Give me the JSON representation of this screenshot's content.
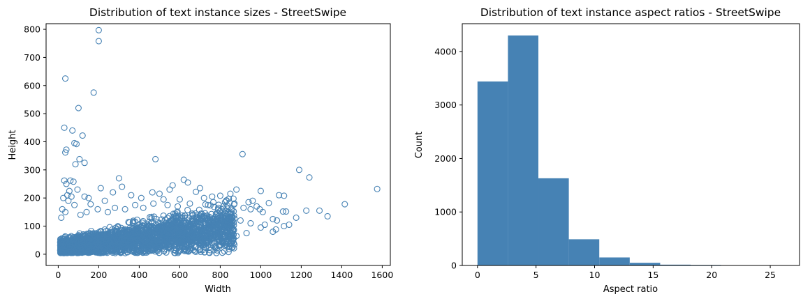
{
  "chart_data": [
    {
      "type": "scatter",
      "title": "Distribution of text instance sizes - StreetSwipe",
      "xlabel": "Width",
      "ylabel": "Height",
      "xlim": [
        -60,
        1640
      ],
      "ylim": [
        -40,
        820
      ],
      "xticks": [
        0,
        200,
        400,
        600,
        800,
        1000,
        1200,
        1400,
        1600
      ],
      "yticks": [
        0,
        100,
        200,
        300,
        400,
        500,
        600,
        700,
        800
      ],
      "marker": "hollow-circle",
      "color": "#4682b4",
      "grid": false,
      "points": [
        [
          35,
          625
        ],
        [
          175,
          575
        ],
        [
          200,
          797
        ],
        [
          200,
          758
        ],
        [
          100,
          520
        ],
        [
          30,
          450
        ],
        [
          70,
          440
        ],
        [
          120,
          422
        ],
        [
          40,
          372
        ],
        [
          35,
          362
        ],
        [
          80,
          395
        ],
        [
          90,
          392
        ],
        [
          105,
          338
        ],
        [
          130,
          325
        ],
        [
          85,
          320
        ],
        [
          480,
          338
        ],
        [
          910,
          356
        ],
        [
          1190,
          300
        ],
        [
          1240,
          273
        ],
        [
          1575,
          232
        ],
        [
          1415,
          178
        ],
        [
          1330,
          135
        ],
        [
          1290,
          155
        ],
        [
          1225,
          155
        ],
        [
          1175,
          130
        ],
        [
          1125,
          152
        ],
        [
          1110,
          152
        ],
        [
          1140,
          105
        ],
        [
          1115,
          100
        ],
        [
          1080,
          120
        ],
        [
          1060,
          125
        ],
        [
          1075,
          88
        ],
        [
          1020,
          105
        ],
        [
          995,
          160
        ],
        [
          1000,
          225
        ],
        [
          1040,
          182
        ],
        [
          1090,
          210
        ],
        [
          1115,
          208
        ],
        [
          960,
          190
        ],
        [
          980,
          170
        ],
        [
          880,
          230
        ],
        [
          915,
          165
        ],
        [
          850,
          215
        ],
        [
          800,
          208
        ],
        [
          620,
          265
        ],
        [
          640,
          255
        ],
        [
          700,
          235
        ],
        [
          680,
          222
        ],
        [
          565,
          245
        ],
        [
          550,
          230
        ],
        [
          465,
          220
        ],
        [
          300,
          270
        ],
        [
          315,
          240
        ],
        [
          210,
          235
        ],
        [
          30,
          262
        ],
        [
          60,
          262
        ],
        [
          75,
          258
        ],
        [
          40,
          250
        ],
        [
          55,
          225
        ],
        [
          95,
          230
        ],
        [
          20,
          160
        ],
        [
          15,
          130
        ],
        [
          25,
          200
        ],
        [
          45,
          210
        ],
        [
          50,
          190
        ],
        [
          65,
          205
        ],
        [
          130,
          205
        ],
        [
          150,
          200
        ],
        [
          160,
          178
        ],
        [
          230,
          190
        ],
        [
          270,
          220
        ],
        [
          360,
          210
        ],
        [
          410,
          200
        ],
        [
          500,
          215
        ],
        [
          520,
          195
        ],
        [
          600,
          195
        ],
        [
          720,
          200
        ],
        [
          760,
          205
        ],
        [
          830,
          190
        ],
        [
          870,
          180
        ],
        [
          940,
          185
        ],
        [
          950,
          160
        ],
        [
          1010,
          150
        ],
        [
          840,
          150
        ],
        [
          790,
          165
        ],
        [
          740,
          175
        ],
        [
          650,
          180
        ],
        [
          590,
          170
        ],
        [
          540,
          175
        ],
        [
          470,
          180
        ],
        [
          420,
          165
        ],
        [
          380,
          175
        ],
        [
          330,
          160
        ],
        [
          280,
          165
        ],
        [
          245,
          150
        ],
        [
          195,
          160
        ],
        [
          140,
          150
        ],
        [
          110,
          140
        ],
        [
          80,
          175
        ],
        [
          35,
          150
        ],
        [
          900,
          120
        ],
        [
          950,
          110
        ],
        [
          1000,
          95
        ],
        [
          1060,
          80
        ],
        [
          850,
          95
        ],
        [
          780,
          115
        ],
        [
          930,
          75
        ],
        [
          880,
          65
        ],
        [
          820,
          60
        ],
        [
          760,
          55
        ],
        [
          700,
          70
        ],
        [
          640,
          60
        ],
        [
          600,
          45
        ],
        [
          540,
          50
        ],
        [
          480,
          40
        ],
        [
          420,
          35
        ],
        [
          360,
          30
        ],
        [
          300,
          25
        ],
        [
          240,
          20
        ],
        [
          180,
          15
        ],
        [
          120,
          12
        ],
        [
          60,
          8
        ],
        [
          20,
          5
        ],
        [
          330,
          15
        ]
      ]
    },
    {
      "type": "bar",
      "subtype": "histogram",
      "title": "Distribution of text instance aspect ratios - StreetSwipe",
      "xlabel": "Aspect ratio",
      "ylabel": "Count",
      "xlim": [
        -1.3,
        27.5
      ],
      "ylim": [
        0,
        4520
      ],
      "xticks": [
        0,
        5,
        10,
        15,
        20,
        25
      ],
      "yticks": [
        0,
        1000,
        2000,
        3000,
        4000
      ],
      "color": "#4682b4",
      "grid": false,
      "bin_edges": [
        0,
        2.6,
        5.2,
        7.8,
        10.4,
        13.0,
        15.6,
        18.2,
        20.8,
        23.4,
        26.0
      ],
      "counts": [
        3440,
        4300,
        1630,
        490,
        150,
        50,
        15,
        10,
        5,
        3
      ]
    }
  ]
}
